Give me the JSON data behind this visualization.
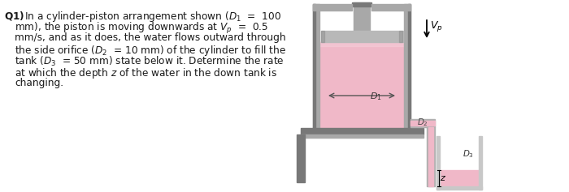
{
  "bg_color": "#ffffff",
  "text_color": "#1a1a1a",
  "water_color": "#f0b8c8",
  "water_light": "#f5ccd8",
  "cylinder_gray": "#a8a8a8",
  "cylinder_dark": "#787878",
  "cylinder_light": "#d0d0d0",
  "piston_color": "#b8b8b8",
  "pipe_gray": "#b0b0b0",
  "tank_gray": "#c8c8c8",
  "tank_light": "#e0e0e0",
  "arrow_color": "#333333"
}
